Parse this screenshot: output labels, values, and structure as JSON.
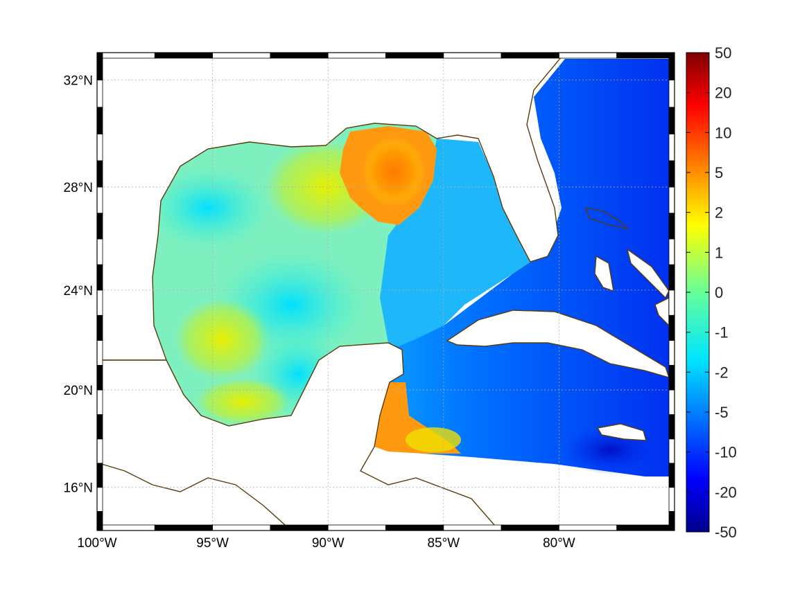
{
  "map": {
    "projection": "mercator",
    "lon_range": [
      -100,
      -75
    ],
    "lat_range": [
      14.2,
      33
    ],
    "frame_style": "alternating black and white border"
  },
  "axes": {
    "lon_ticks": [
      {
        "value": -100,
        "label": "100°W"
      },
      {
        "value": -95,
        "label": "95°W"
      },
      {
        "value": -90,
        "label": "90°W"
      },
      {
        "value": -85,
        "label": "85°W"
      },
      {
        "value": -80,
        "label": "80°W"
      }
    ],
    "lat_ticks": [
      {
        "value": 32,
        "label": "32°N"
      },
      {
        "value": 28,
        "label": "28°N"
      },
      {
        "value": 24,
        "label": "24°N"
      },
      {
        "value": 20,
        "label": "20°N"
      },
      {
        "value": 16,
        "label": "16°N"
      }
    ],
    "grid": "dotted"
  },
  "colorbar": {
    "colormap": "jet",
    "scale": "symmetric nonlinear",
    "ticks": [
      {
        "value": 50,
        "label": "50"
      },
      {
        "value": 20,
        "label": "20"
      },
      {
        "value": 10,
        "label": "10"
      },
      {
        "value": 5,
        "label": "5"
      },
      {
        "value": 2,
        "label": "2"
      },
      {
        "value": 1,
        "label": "1"
      },
      {
        "value": 0,
        "label": "0"
      },
      {
        "value": -1,
        "label": "-1"
      },
      {
        "value": -2,
        "label": "-2"
      },
      {
        "value": -5,
        "label": "-5"
      },
      {
        "value": -10,
        "label": "-10"
      },
      {
        "value": -20,
        "label": "-20"
      },
      {
        "value": -50,
        "label": "-50"
      }
    ]
  },
  "colors": {
    "coastline": "#5a3a0a",
    "land": "#ffffff",
    "grid": "#b0b0b0"
  }
}
